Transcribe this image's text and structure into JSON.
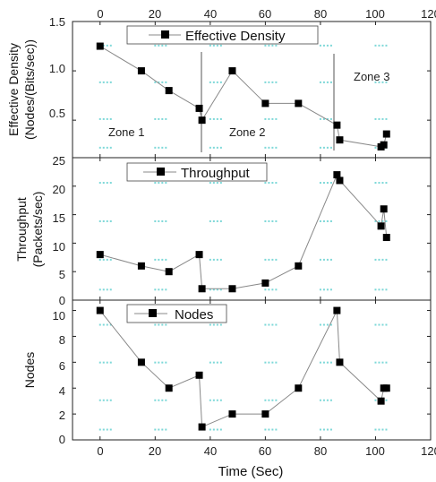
{
  "chart_data": [
    {
      "type": "line",
      "legend": "Effective Density",
      "ylabel_line1": "Effective Density",
      "ylabel_line2": "(Nodes/(Bits/sec))",
      "ylim": [
        0.12,
        1.5
      ],
      "yticks": [
        "1.5",
        "1.0",
        "0.5"
      ],
      "ytick_values": [
        1.5,
        1.0,
        0.5
      ],
      "x": [
        0,
        15,
        25,
        36,
        37,
        48,
        60,
        72,
        86,
        87,
        102,
        103,
        104
      ],
      "values": [
        1.25,
        1.0,
        0.8,
        0.62,
        0.5,
        1.0,
        0.67,
        0.67,
        0.45,
        0.3,
        0.23,
        0.25,
        0.36
      ],
      "zone_lines_x": [
        37,
        86
      ],
      "zones": [
        {
          "label": "Zone 1",
          "x": 8,
          "y": 0.27
        },
        {
          "label": "Zone 2",
          "x": 47,
          "y": 0.27
        },
        {
          "label": "Zone 3",
          "x": 95,
          "y": 0.98
        }
      ]
    },
    {
      "type": "line",
      "legend": "Throughput",
      "ylabel_line1": "Throughput",
      "ylabel_line2": "(Packets/sec)",
      "ylim": [
        0,
        25
      ],
      "yticks": [
        "20",
        "15",
        "10",
        "5",
        "0"
      ],
      "ytick_values": [
        20,
        15,
        10,
        5,
        0
      ],
      "top_tick_label": "25",
      "x": [
        0,
        15,
        25,
        36,
        37,
        48,
        60,
        72,
        86,
        87,
        102,
        103,
        104
      ],
      "values": [
        8,
        6,
        5,
        8,
        2,
        2,
        3,
        6,
        22,
        21,
        13,
        16,
        11
      ]
    },
    {
      "type": "line",
      "legend": "Nodes",
      "ylabel": "Nodes",
      "ylim": [
        0,
        10.8
      ],
      "yticks": [
        "10",
        "8",
        "6",
        "4",
        "2",
        "0"
      ],
      "ytick_values": [
        10,
        8,
        6,
        4,
        2,
        0
      ],
      "x": [
        0,
        15,
        25,
        36,
        37,
        48,
        60,
        72,
        86,
        87,
        102,
        103,
        104
      ],
      "values": [
        10,
        6,
        4,
        5,
        1,
        2,
        2,
        4,
        10,
        6,
        3,
        4,
        4
      ]
    }
  ],
  "x_axis": {
    "label": "Time (Sec)",
    "xlim": [
      -10,
      120
    ],
    "ticks": [
      "0",
      "20",
      "40",
      "60",
      "80",
      "100",
      "120"
    ],
    "tick_values": [
      0,
      20,
      40,
      60,
      80,
      100,
      120
    ]
  },
  "colors": {
    "line": "#888888",
    "marker": "#000000",
    "axis": "#222222",
    "dots": "#7dd8d8"
  }
}
